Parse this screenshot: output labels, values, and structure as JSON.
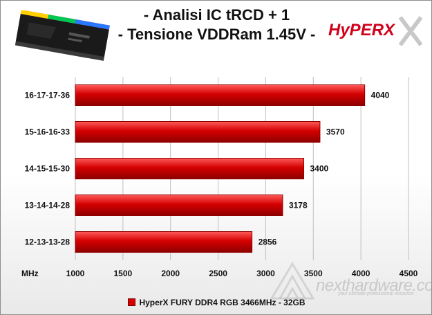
{
  "header": {
    "title_line1": "- Analisi IC  tRCD + 1",
    "title_line2": "- Tensione VDDRam 1.45V -",
    "logo_text": "HyPERX"
  },
  "colors": {
    "bar": "#d40000",
    "bar_dark": "#8e0000",
    "bar_light": "#ff5a5a",
    "grid": "#bfbfbf"
  },
  "watermark": {
    "name": "nexthardware.com",
    "tagline": "your ultimate professional resource"
  },
  "chart_data": {
    "type": "bar",
    "orientation": "horizontal",
    "categories": [
      "16-17-17-36",
      "15-16-16-33",
      "14-15-15-30",
      "13-14-14-28",
      "12-13-13-28"
    ],
    "series": [
      {
        "name": "HyperX FURY DDR4 RGB 3466MHz - 32GB",
        "values": [
          4040,
          3570,
          3400,
          3178,
          2856
        ]
      }
    ],
    "xlabel": "MHz",
    "xlim": [
      1000,
      4500
    ],
    "xticks": [
      1000,
      1500,
      2000,
      2500,
      3000,
      3500,
      4000,
      4500
    ],
    "grid": true,
    "legend_position": "bottom"
  }
}
